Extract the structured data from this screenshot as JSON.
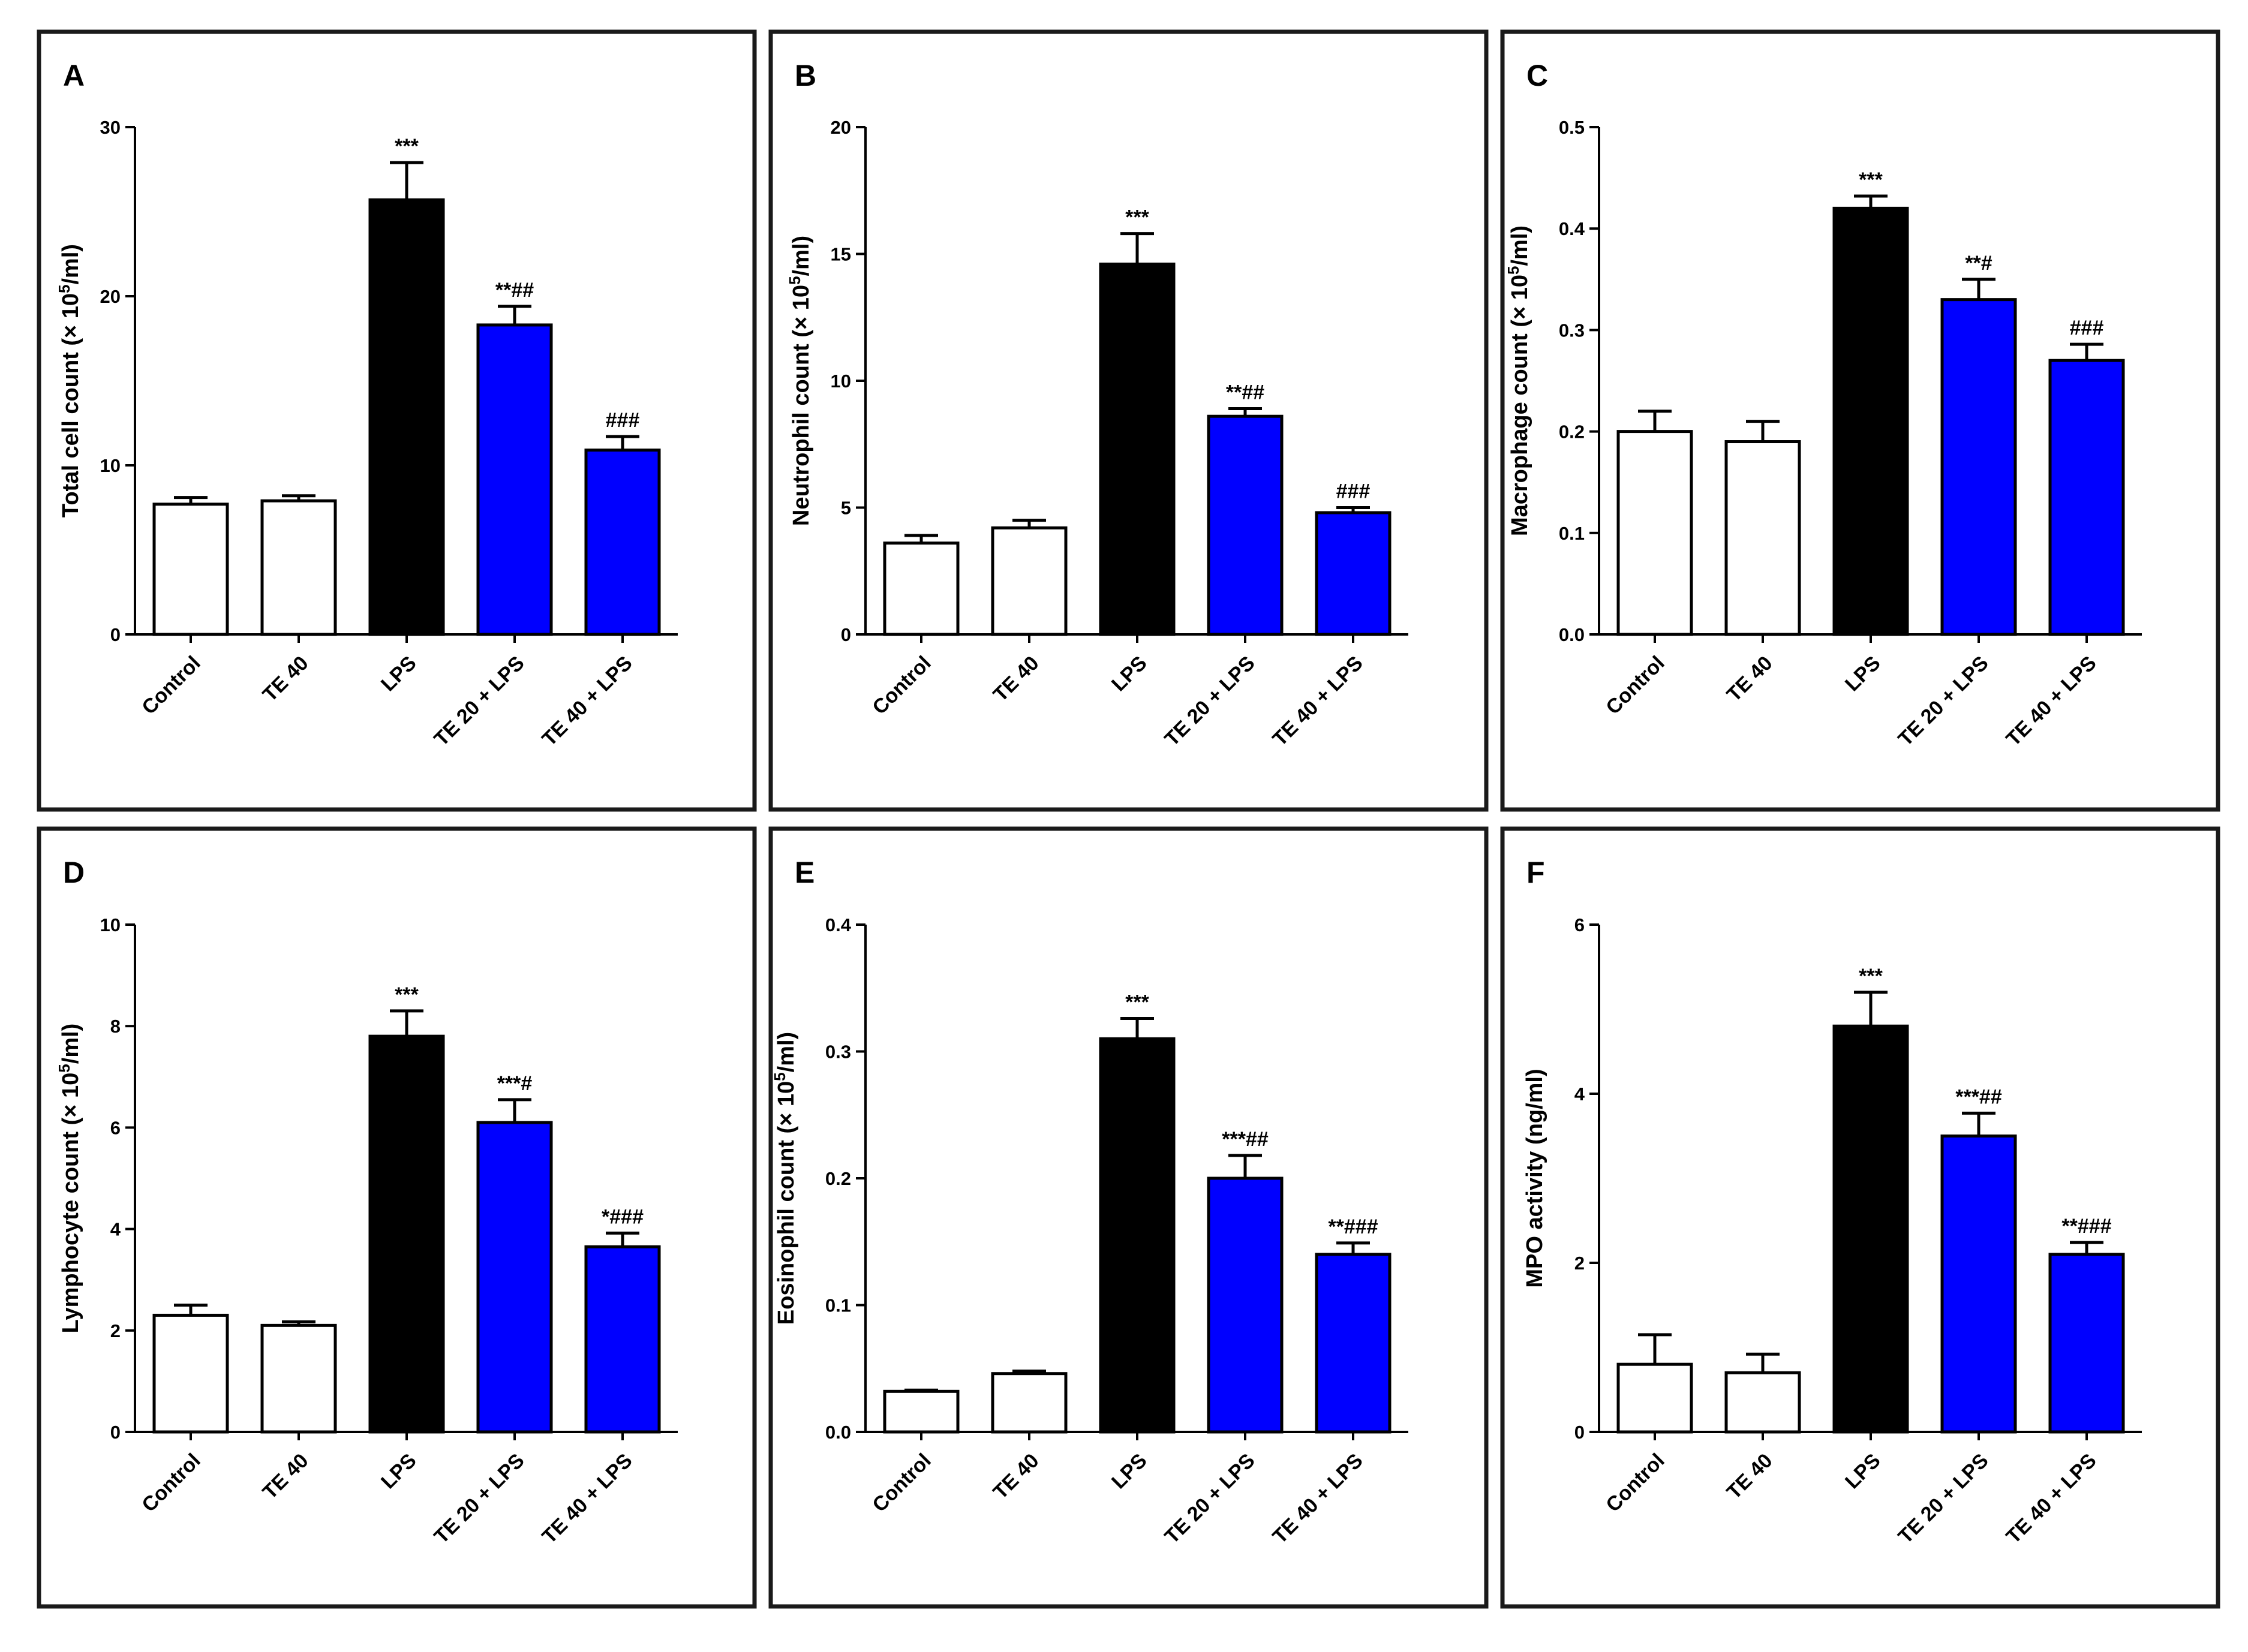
{
  "chart_data": [
    {
      "type": "bar",
      "panel": "A",
      "ylabel_pre": "Total cell count (× 10",
      "ylabel_sup": "5",
      "ylabel_post": "/ml)",
      "ylim": [
        0,
        30
      ],
      "yticks": [
        "0",
        "10",
        "20",
        "30"
      ],
      "categories": [
        "Control",
        "TE 40",
        "LPS",
        "TE 20 + LPS",
        "TE 40 + LPS"
      ],
      "values": [
        7.7,
        7.9,
        25.7,
        18.3,
        10.9
      ],
      "errors": [
        0.4,
        0.3,
        2.2,
        1.1,
        0.8
      ],
      "colors": [
        "#ffffff",
        "#ffffff",
        "#000000",
        "#0000ff",
        "#0000ff"
      ],
      "significance": [
        "",
        "",
        "***",
        "**##",
        "###"
      ]
    },
    {
      "type": "bar",
      "panel": "B",
      "ylabel_pre": "Neutrophil count (× 10",
      "ylabel_sup": "5",
      "ylabel_post": "/ml)",
      "ylim": [
        0,
        20
      ],
      "yticks": [
        "0",
        "5",
        "10",
        "15",
        "20"
      ],
      "categories": [
        "Control",
        "TE 40",
        "LPS",
        "TE 20 + LPS",
        "TE 40 + LPS"
      ],
      "values": [
        3.6,
        4.2,
        14.6,
        8.6,
        4.8
      ],
      "errors": [
        0.3,
        0.3,
        1.2,
        0.3,
        0.2
      ],
      "colors": [
        "#ffffff",
        "#ffffff",
        "#000000",
        "#0000ff",
        "#0000ff"
      ],
      "significance": [
        "",
        "",
        "***",
        "**##",
        "###"
      ]
    },
    {
      "type": "bar",
      "panel": "C",
      "ylabel_pre": "Macrophage count (× 10",
      "ylabel_sup": "5",
      "ylabel_post": "/ml)",
      "ylim": [
        0,
        0.5
      ],
      "yticks": [
        "0.0",
        "0.1",
        "0.2",
        "0.3",
        "0.4",
        "0.5"
      ],
      "categories": [
        "Control",
        "TE 40",
        "LPS",
        "TE 20 + LPS",
        "TE 40 + LPS"
      ],
      "values": [
        0.2,
        0.19,
        0.42,
        0.33,
        0.27
      ],
      "errors": [
        0.02,
        0.02,
        0.012,
        0.02,
        0.016
      ],
      "colors": [
        "#ffffff",
        "#ffffff",
        "#000000",
        "#0000ff",
        "#0000ff"
      ],
      "significance": [
        "",
        "",
        "***",
        "**#",
        "###"
      ]
    },
    {
      "type": "bar",
      "panel": "D",
      "ylabel_pre": "Lymphocyte count (× 10",
      "ylabel_sup": "5",
      "ylabel_post": "/ml)",
      "ylim": [
        0,
        10
      ],
      "yticks": [
        "0",
        "2",
        "4",
        "6",
        "8",
        "10"
      ],
      "categories": [
        "Control",
        "TE 40",
        "LPS",
        "TE 20 + LPS",
        "TE 40 + LPS"
      ],
      "values": [
        2.3,
        2.1,
        7.8,
        6.1,
        3.65
      ],
      "errors": [
        0.2,
        0.07,
        0.5,
        0.45,
        0.27
      ],
      "colors": [
        "#ffffff",
        "#ffffff",
        "#000000",
        "#0000ff",
        "#0000ff"
      ],
      "significance": [
        "",
        "",
        "***",
        "***#",
        "*###"
      ]
    },
    {
      "type": "bar",
      "panel": "E",
      "ylabel_pre": "Eosinophil count (× 10",
      "ylabel_sup": "5",
      "ylabel_post": "/ml)",
      "ylim": [
        0,
        0.4
      ],
      "yticks": [
        "0.0",
        "0.1",
        "0.2",
        "0.3",
        "0.4"
      ],
      "categories": [
        "Control",
        "TE 40",
        "LPS",
        "TE 20 + LPS",
        "TE 40 + LPS"
      ],
      "values": [
        0.032,
        0.046,
        0.31,
        0.2,
        0.14
      ],
      "errors": [
        0.001,
        0.002,
        0.016,
        0.018,
        0.009
      ],
      "colors": [
        "#ffffff",
        "#ffffff",
        "#000000",
        "#0000ff",
        "#0000ff"
      ],
      "significance": [
        "",
        "",
        "***",
        "***##",
        "**###"
      ]
    },
    {
      "type": "bar",
      "panel": "F",
      "ylabel_pre": "MPO activity (ng/ml)",
      "ylabel_sup": "",
      "ylabel_post": "",
      "ylim": [
        0,
        6
      ],
      "yticks": [
        "0",
        "2",
        "4",
        "6"
      ],
      "categories": [
        "Control",
        "TE 40",
        "LPS",
        "TE 20 + LPS",
        "TE 40 + LPS"
      ],
      "values": [
        0.8,
        0.7,
        4.8,
        3.5,
        2.1
      ],
      "errors": [
        0.35,
        0.22,
        0.4,
        0.27,
        0.14
      ],
      "colors": [
        "#ffffff",
        "#ffffff",
        "#000000",
        "#0000ff",
        "#0000ff"
      ],
      "significance": [
        "",
        "",
        "***",
        "***##",
        "**###"
      ]
    }
  ]
}
